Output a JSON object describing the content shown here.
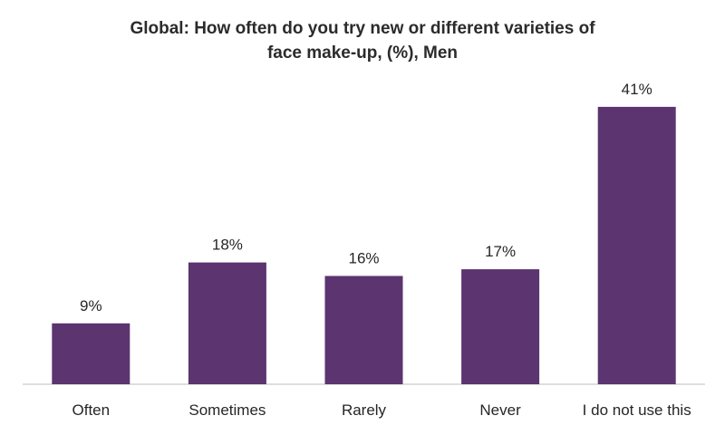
{
  "chart_data": {
    "type": "bar",
    "title_lines": [
      "Global: How often do you try new or different varieties of",
      "face make-up, (%), Men"
    ],
    "categories": [
      "Often",
      "Sometimes",
      "Rarely",
      "Never",
      "I do not use this"
    ],
    "values": [
      9,
      18,
      16,
      17,
      41
    ],
    "data_labels": [
      "9%",
      "18%",
      "16%",
      "17%",
      "41%"
    ],
    "ylim": [
      0,
      45
    ],
    "grid": false,
    "legend": "none",
    "bar_color": "#5b3470"
  }
}
